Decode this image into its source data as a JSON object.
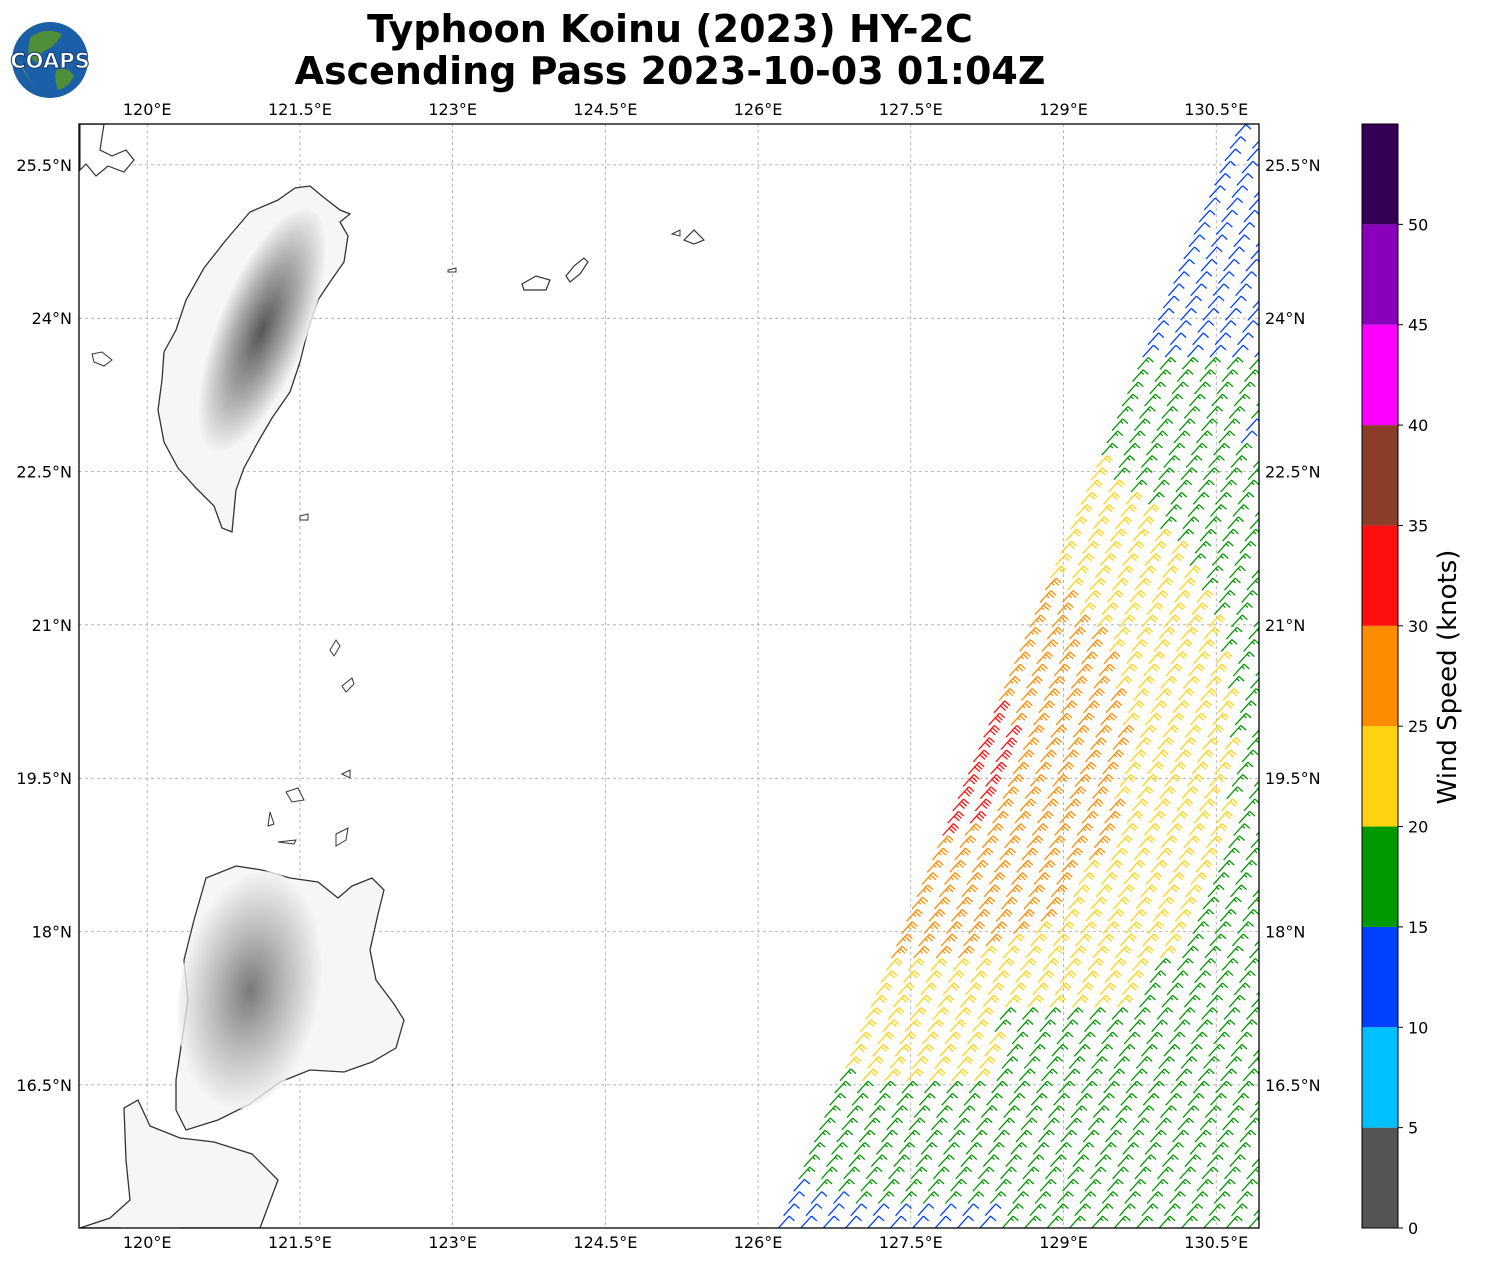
{
  "title": {
    "line1": "Typhoon Koinu (2023) HY-2C",
    "line2": "Ascending Pass 2023-10-03 01:04Z"
  },
  "logo": {
    "text": "COAPS",
    "icon": "globe-logo-icon"
  },
  "map": {
    "lon_range": [
      119.33,
      130.92
    ],
    "lat_range": [
      15.1,
      25.9
    ],
    "lon_ticks": [
      {
        "value": 120.0,
        "label": "120°E"
      },
      {
        "value": 121.5,
        "label": "121.5°E"
      },
      {
        "value": 123.0,
        "label": "123°E"
      },
      {
        "value": 124.5,
        "label": "124.5°E"
      },
      {
        "value": 126.0,
        "label": "126°E"
      },
      {
        "value": 127.5,
        "label": "127.5°E"
      },
      {
        "value": 129.0,
        "label": "129°E"
      },
      {
        "value": 130.5,
        "label": "130.5°E"
      }
    ],
    "lat_ticks": [
      {
        "value": 16.5,
        "label": "16.5°N"
      },
      {
        "value": 18.0,
        "label": "18°N"
      },
      {
        "value": 19.5,
        "label": "19.5°N"
      },
      {
        "value": 21.0,
        "label": "21°N"
      },
      {
        "value": 22.5,
        "label": "22.5°N"
      },
      {
        "value": 24.0,
        "label": "24°N"
      },
      {
        "value": 25.5,
        "label": "25.5°N"
      }
    ],
    "grid": true,
    "terrain": "grayscale shaded relief",
    "coastline_color": "#333333"
  },
  "colorbar": {
    "label": "Wind Speed (knots)",
    "ticks": [
      "0",
      "5",
      "10",
      "15",
      "20",
      "25",
      "30",
      "35",
      "40",
      "45",
      "50"
    ],
    "bins": [
      {
        "from": 0,
        "to": 5,
        "color": "#555555"
      },
      {
        "from": 5,
        "to": 10,
        "color": "#00bfff"
      },
      {
        "from": 10,
        "to": 15,
        "color": "#0040ff"
      },
      {
        "from": 15,
        "to": 20,
        "color": "#009900"
      },
      {
        "from": 20,
        "to": 25,
        "color": "#ffd310"
      },
      {
        "from": 25,
        "to": 30,
        "color": "#ff8c00"
      },
      {
        "from": 30,
        "to": 35,
        "color": "#ff1010"
      },
      {
        "from": 35,
        "to": 40,
        "color": "#8b3e2a"
      },
      {
        "from": 40,
        "to": 45,
        "color": "#ff00ff"
      },
      {
        "from": 45,
        "to": 50,
        "color": "#8800bb"
      },
      {
        "from": 50,
        "to": 55,
        "color": "#330055"
      }
    ]
  }
}
